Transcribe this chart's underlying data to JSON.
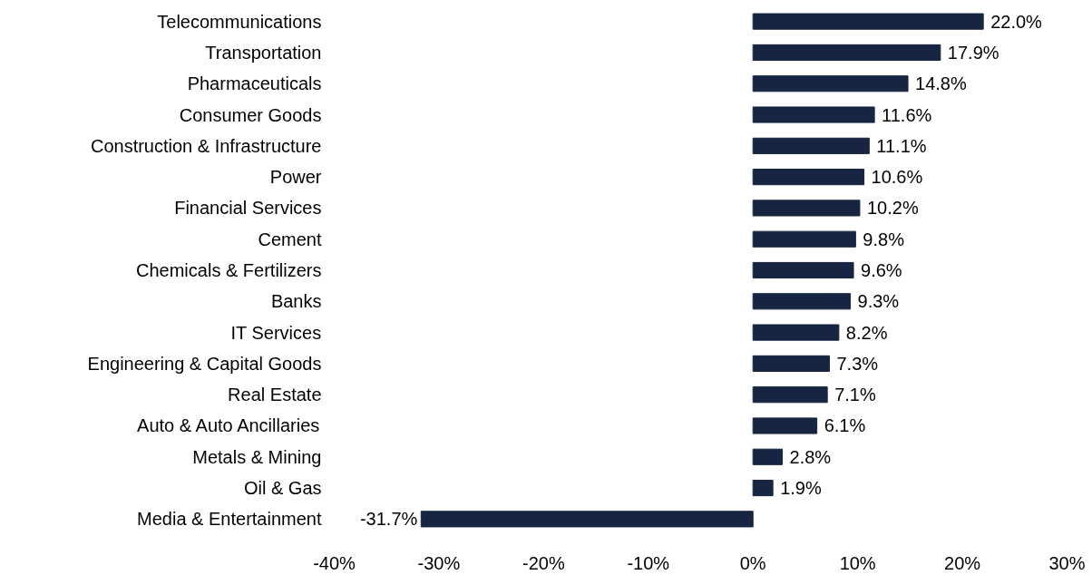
{
  "chart_data": {
    "type": "bar",
    "orientation": "horizontal",
    "categories": [
      "Telecommunications",
      "Transportation",
      "Pharmaceuticals",
      "Consumer Goods",
      "Construction & Infrastructure",
      "Power",
      "Financial Services",
      "Cement",
      "Chemicals & Fertilizers",
      "Banks",
      "IT Services",
      "Engineering & Capital Goods",
      "Real Estate",
      "Auto & Auto Ancillaries",
      "Metals & Mining",
      "Oil & Gas",
      "Media & Entertainment"
    ],
    "values": [
      22.0,
      17.9,
      14.8,
      11.6,
      11.1,
      10.6,
      10.2,
      9.8,
      9.6,
      9.3,
      8.2,
      7.3,
      7.1,
      6.1,
      2.8,
      1.9,
      -31.7
    ],
    "value_labels": [
      "22.0%",
      "17.9%",
      "14.8%",
      "11.6%",
      "11.1%",
      "10.6%",
      "10.2%",
      "9.8%",
      "9.6%",
      "9.3%",
      "8.2%",
      "7.3%",
      "7.1%",
      "6.1%",
      "2.8%",
      "1.9%",
      "-31.7%"
    ],
    "color": "#172542",
    "xlim": [
      -40,
      30
    ],
    "xticks": [
      {
        "value": -40,
        "label": "-40%"
      },
      {
        "value": -30,
        "label": "-30%"
      },
      {
        "value": -20,
        "label": "-20%"
      },
      {
        "value": -10,
        "label": "-10%"
      },
      {
        "value": 0,
        "label": "0%"
      },
      {
        "value": 10,
        "label": "10%"
      },
      {
        "value": 20,
        "label": "20%"
      },
      {
        "value": 30,
        "label": "30%"
      }
    ]
  }
}
